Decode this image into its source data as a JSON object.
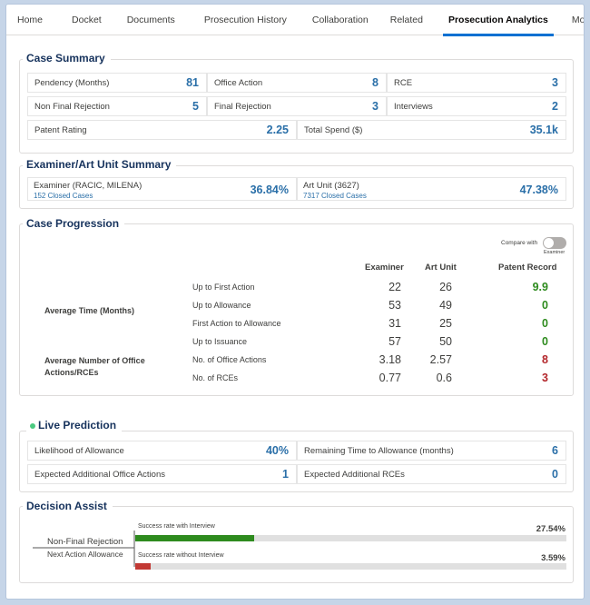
{
  "tabs": [
    {
      "label": "Home"
    },
    {
      "label": "Docket"
    },
    {
      "label": "Documents"
    },
    {
      "label": "Prosecution History"
    },
    {
      "label": "Collaboration"
    },
    {
      "label": "Related"
    },
    {
      "label": "Prosecution Analytics"
    },
    {
      "label": "More"
    }
  ],
  "case_summary": {
    "title": "Case Summary",
    "cells": [
      {
        "label": "Pendency (Months)",
        "value": "81"
      },
      {
        "label": "Office Action",
        "value": "8"
      },
      {
        "label": "RCE",
        "value": "3"
      },
      {
        "label": "Non Final Rejection",
        "value": "5"
      },
      {
        "label": "Final Rejection",
        "value": "3"
      },
      {
        "label": "Interviews",
        "value": "2"
      },
      {
        "label": "Patent Rating",
        "value": "2.25"
      },
      {
        "label": "Total Spend ($)",
        "value": "35.1k"
      }
    ]
  },
  "examiner_summary": {
    "title": "Examiner/Art Unit Summary",
    "examiner": {
      "label": "Examiner (RACIC, MILENA)",
      "sub": "152 Closed Cases",
      "value": "36.84%"
    },
    "art_unit": {
      "label": "Art Unit (3627)",
      "sub": "7317 Closed Cases",
      "value": "47.38%"
    }
  },
  "case_progression": {
    "title": "Case Progression",
    "compare_label": "Compare with",
    "compare_sub": "Examiner",
    "compare_on": false,
    "headers": [
      "Examiner",
      "Art Unit",
      "Patent Record"
    ],
    "groups": [
      "Average Time (Months)",
      "Average Number of Office Actions/RCEs"
    ],
    "rows": [
      {
        "label": "Up to First Action",
        "examiner": "22",
        "art_unit": "26",
        "record": "9.9"
      },
      {
        "label": "Up to Allowance",
        "examiner": "53",
        "art_unit": "49",
        "record": "0"
      },
      {
        "label": "First Action to Allowance",
        "examiner": "31",
        "art_unit": "25",
        "record": "0"
      },
      {
        "label": "Up to Issuance",
        "examiner": "57",
        "art_unit": "50",
        "record": "0"
      },
      {
        "label": "No. of Office Actions",
        "examiner": "3.18",
        "art_unit": "2.57",
        "record": "8"
      },
      {
        "label": "No. of RCEs",
        "examiner": "0.77",
        "art_unit": "0.6",
        "record": "3"
      }
    ],
    "colors": {
      "good": "#2e8b1e",
      "bad": "#b3262b"
    }
  },
  "live_prediction": {
    "title": "Live Prediction",
    "status_color": "#4bca81",
    "cells": [
      {
        "label": "Likelihood of Allowance",
        "value": "40%"
      },
      {
        "label": "Remaining Time to Allowance (months)",
        "value": "6"
      },
      {
        "label": "Expected Additional Office Actions",
        "value": "1"
      },
      {
        "label": "Expected Additional RCEs",
        "value": "0"
      }
    ]
  },
  "decision_assist": {
    "title": "Decision Assist",
    "branch_label": "Non-Final Rejection",
    "next_label": "Next Action Allowance",
    "bars": [
      {
        "label": "Success rate with Interview",
        "value_text": "27.54%",
        "fraction": 0.2754,
        "color": "#2e8b1e"
      },
      {
        "label": "Success rate without Interview",
        "value_text": "3.59%",
        "fraction": 0.0359,
        "color": "#c23934"
      }
    ]
  }
}
